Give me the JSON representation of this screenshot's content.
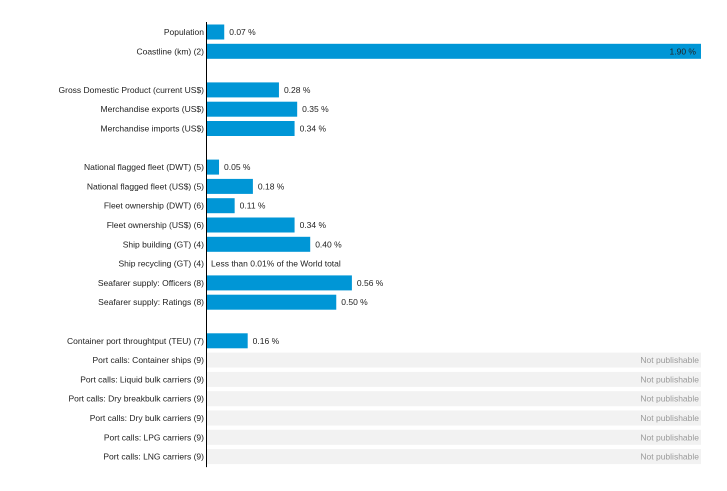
{
  "chart_data": {
    "type": "bar",
    "orientation": "horizontal",
    "unit": "%",
    "xlim": [
      0,
      1.9
    ],
    "grid": false,
    "legend": "none",
    "colors": {
      "bar": "#0096d6",
      "not_publishable_band": "#f2f2f2",
      "not_publishable_text": "#9a9a9a"
    },
    "categories": [
      {
        "label": "Population",
        "value": 0.07,
        "value_label": "0.07 %"
      },
      {
        "label": "Coastline (km) (2)",
        "value": 1.9,
        "value_label": "1.90 %"
      },
      null,
      {
        "label": "Gross Domestic Product (current US$)",
        "value": 0.28,
        "value_label": "0.28 %"
      },
      {
        "label": "Merchandise exports (US$)",
        "value": 0.35,
        "value_label": "0.35 %"
      },
      {
        "label": "Merchandise imports (US$)",
        "value": 0.34,
        "value_label": "0.34 %"
      },
      null,
      {
        "label": "National flagged fleet (DWT) (5)",
        "value": 0.05,
        "value_label": "0.05 %"
      },
      {
        "label": "National flagged fleet (US$) (5)",
        "value": 0.18,
        "value_label": "0.18 %"
      },
      {
        "label": "Fleet ownership (DWT) (6)",
        "value": 0.11,
        "value_label": "0.11 %"
      },
      {
        "label": "Fleet ownership (US$) (6)",
        "value": 0.34,
        "value_label": "0.34 %"
      },
      {
        "label": "Ship building (GT) (4)",
        "value": 0.4,
        "value_label": "0.40 %"
      },
      {
        "label": "Ship recycling (GT) (4)",
        "value": 0,
        "value_label": "Less than 0.01% of the World total"
      },
      {
        "label": "Seafarer supply: Officers (8)",
        "value": 0.56,
        "value_label": "0.56 %"
      },
      {
        "label": "Seafarer supply: Ratings (8)",
        "value": 0.5,
        "value_label": "0.50 %"
      },
      null,
      {
        "label": "Container port throughtput (TEU) (7)",
        "value": 0.16,
        "value_label": "0.16 %"
      },
      {
        "label": "Port calls: Container ships (9)",
        "value": null,
        "value_label": "Not publishable"
      },
      {
        "label": "Port calls: Liquid bulk carriers (9)",
        "value": null,
        "value_label": "Not publishable"
      },
      {
        "label": "Port calls: Dry breakbulk carriers (9)",
        "value": null,
        "value_label": "Not publishable"
      },
      {
        "label": "Port calls: Dry bulk carriers (9)",
        "value": null,
        "value_label": "Not publishable"
      },
      {
        "label": "Port calls: LPG carriers (9)",
        "value": null,
        "value_label": "Not publishable"
      },
      {
        "label": "Port calls: LNG carriers (9)",
        "value": null,
        "value_label": "Not publishable"
      }
    ]
  }
}
